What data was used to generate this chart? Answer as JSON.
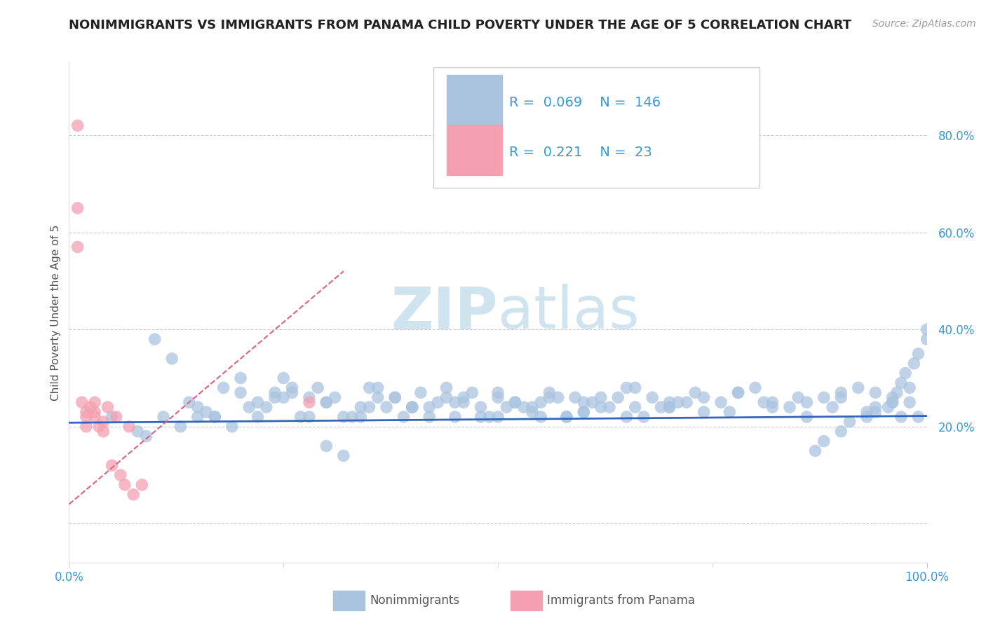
{
  "title": "NONIMMIGRANTS VS IMMIGRANTS FROM PANAMA CHILD POVERTY UNDER THE AGE OF 5 CORRELATION CHART",
  "source": "Source: ZipAtlas.com",
  "ylabel": "Child Poverty Under the Age of 5",
  "xlabel_blue": "Nonimmigrants",
  "xlabel_pink": "Immigrants from Panama",
  "xmin": 0.0,
  "xmax": 1.0,
  "ymin": -0.08,
  "ymax": 0.95,
  "yticks": [
    0.0,
    0.2,
    0.4,
    0.6,
    0.8
  ],
  "ytick_labels": [
    "",
    "20.0%",
    "40.0%",
    "60.0%",
    "80.0%"
  ],
  "xticks": [
    0.0,
    1.0
  ],
  "xtick_labels": [
    "0.0%",
    "100.0%"
  ],
  "blue_R": 0.069,
  "blue_N": 146,
  "pink_R": 0.221,
  "pink_N": 23,
  "blue_color": "#aac4e0",
  "pink_color": "#f4a0b0",
  "blue_line_color": "#3366bb",
  "pink_line_color": "#e06080",
  "watermark_color": "#d0e4f0",
  "title_fontsize": 13,
  "axis_label_fontsize": 11,
  "tick_fontsize": 12,
  "legend_fontsize": 14,
  "blue_scatter_x": [
    0.05,
    0.08,
    0.1,
    0.12,
    0.15,
    0.18,
    0.2,
    0.22,
    0.24,
    0.26,
    0.28,
    0.3,
    0.32,
    0.34,
    0.36,
    0.38,
    0.4,
    0.42,
    0.44,
    0.46,
    0.48,
    0.5,
    0.52,
    0.54,
    0.56,
    0.58,
    0.6,
    0.62,
    0.64,
    0.66,
    0.68,
    0.7,
    0.72,
    0.74,
    0.76,
    0.78,
    0.8,
    0.82,
    0.84,
    0.86,
    0.88,
    0.9,
    0.92,
    0.94,
    0.96,
    0.98,
    1.0,
    0.99,
    0.985,
    0.975,
    0.97,
    0.965,
    0.96,
    0.955,
    0.94,
    0.93,
    0.91,
    0.9,
    0.88,
    0.87,
    0.24,
    0.3,
    0.35,
    0.4,
    0.45,
    0.5,
    0.55,
    0.6,
    0.65,
    0.7,
    0.25,
    0.28,
    0.32,
    0.36,
    0.4,
    0.44,
    0.48,
    0.52,
    0.56,
    0.6,
    0.15,
    0.17,
    0.19,
    0.22,
    0.26,
    0.3,
    0.34,
    0.38,
    0.42,
    0.46,
    0.5,
    0.54,
    0.58,
    0.62,
    0.66,
    0.7,
    0.74,
    0.78,
    0.82,
    0.86,
    0.9,
    0.94,
    0.97,
    0.99,
    1.0,
    0.98,
    0.96,
    0.93,
    0.89,
    0.85,
    0.81,
    0.77,
    0.73,
    0.69,
    0.65,
    0.61,
    0.57,
    0.53,
    0.49,
    0.45,
    0.41,
    0.37,
    0.33,
    0.29,
    0.25,
    0.21,
    0.17,
    0.13,
    0.09,
    0.11,
    0.14,
    0.16,
    0.2,
    0.23,
    0.27,
    0.31,
    0.35,
    0.39,
    0.43,
    0.47,
    0.51,
    0.55,
    0.59,
    0.63,
    0.67,
    0.71
  ],
  "blue_scatter_y": [
    0.22,
    0.19,
    0.38,
    0.34,
    0.22,
    0.28,
    0.3,
    0.22,
    0.27,
    0.28,
    0.22,
    0.25,
    0.14,
    0.22,
    0.26,
    0.26,
    0.24,
    0.24,
    0.28,
    0.26,
    0.24,
    0.22,
    0.25,
    0.23,
    0.26,
    0.22,
    0.25,
    0.24,
    0.26,
    0.24,
    0.26,
    0.24,
    0.25,
    0.26,
    0.25,
    0.27,
    0.28,
    0.25,
    0.24,
    0.25,
    0.26,
    0.27,
    0.28,
    0.27,
    0.26,
    0.25,
    0.38,
    0.35,
    0.33,
    0.31,
    0.29,
    0.27,
    0.25,
    0.24,
    0.23,
    0.22,
    0.21,
    0.19,
    0.17,
    0.15,
    0.26,
    0.16,
    0.28,
    0.24,
    0.22,
    0.26,
    0.25,
    0.23,
    0.28,
    0.24,
    0.3,
    0.26,
    0.22,
    0.28,
    0.24,
    0.26,
    0.22,
    0.25,
    0.27,
    0.23,
    0.24,
    0.22,
    0.2,
    0.25,
    0.27,
    0.25,
    0.24,
    0.26,
    0.22,
    0.25,
    0.27,
    0.24,
    0.22,
    0.26,
    0.28,
    0.25,
    0.23,
    0.27,
    0.24,
    0.22,
    0.26,
    0.24,
    0.22,
    0.22,
    0.4,
    0.28,
    0.25,
    0.23,
    0.24,
    0.26,
    0.25,
    0.23,
    0.27,
    0.24,
    0.22,
    0.25,
    0.26,
    0.24,
    0.22,
    0.25,
    0.27,
    0.24,
    0.22,
    0.28,
    0.26,
    0.24,
    0.22,
    0.2,
    0.18,
    0.22,
    0.25,
    0.23,
    0.27,
    0.24,
    0.22,
    0.26,
    0.24,
    0.22,
    0.25,
    0.27,
    0.24,
    0.22,
    0.26,
    0.24,
    0.22,
    0.25
  ],
  "pink_scatter_x": [
    0.01,
    0.01,
    0.01,
    0.015,
    0.02,
    0.02,
    0.02,
    0.025,
    0.03,
    0.03,
    0.03,
    0.035,
    0.04,
    0.04,
    0.045,
    0.05,
    0.055,
    0.06,
    0.065,
    0.07,
    0.075,
    0.085,
    0.28
  ],
  "pink_scatter_y": [
    0.82,
    0.65,
    0.57,
    0.25,
    0.23,
    0.22,
    0.2,
    0.24,
    0.25,
    0.23,
    0.22,
    0.2,
    0.21,
    0.19,
    0.24,
    0.12,
    0.22,
    0.1,
    0.08,
    0.2,
    0.06,
    0.08,
    0.25
  ],
  "blue_trend_x": [
    0.0,
    1.0
  ],
  "blue_trend_y": [
    0.208,
    0.222
  ],
  "pink_trend_x": [
    0.0,
    0.32
  ],
  "pink_trend_y": [
    0.04,
    0.52
  ]
}
